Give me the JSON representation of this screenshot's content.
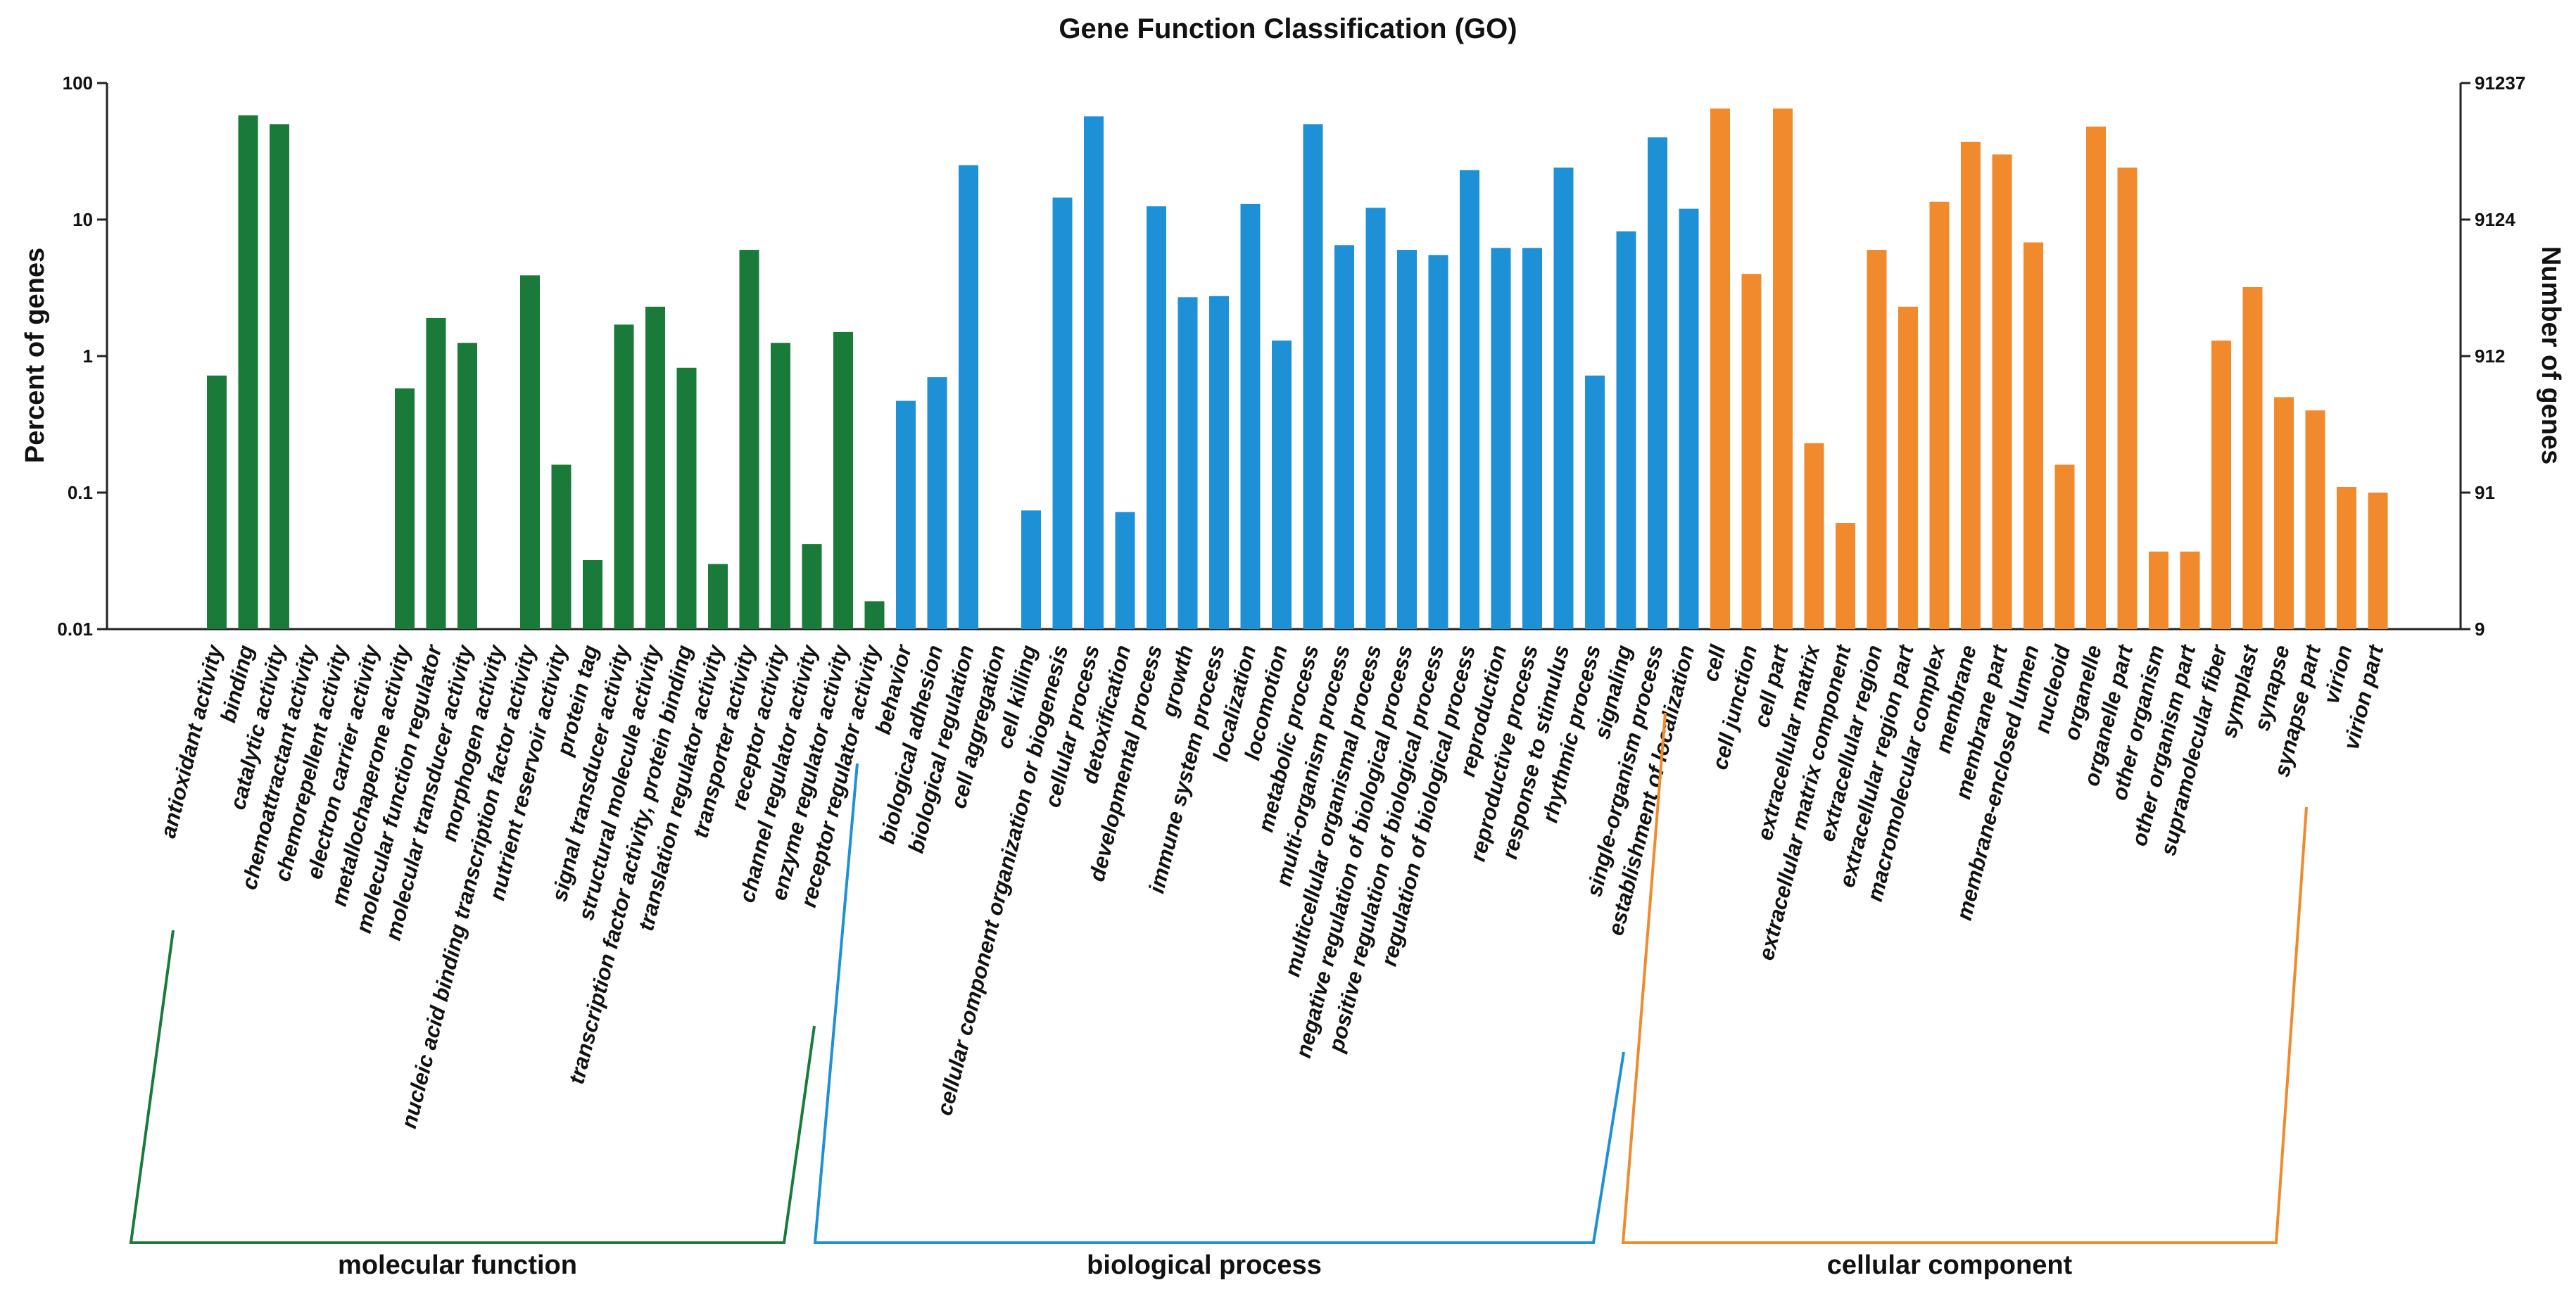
{
  "chart_data": {
    "type": "bar",
    "title": "Gene Function Classification (GO)",
    "ylabel": "Percent of genes",
    "y2label": "Number of genes",
    "yscale": "log",
    "ylim": [
      0.01,
      100
    ],
    "yticks": [
      {
        "value": 0.01,
        "label": "0.01"
      },
      {
        "value": 0.1,
        "label": "0.1"
      },
      {
        "value": 1,
        "label": "1"
      },
      {
        "value": 10,
        "label": "10"
      },
      {
        "value": 100,
        "label": "100"
      }
    ],
    "y2ticks": [
      {
        "value": 0.01,
        "label": "9"
      },
      {
        "value": 0.1,
        "label": "91"
      },
      {
        "value": 1,
        "label": "912"
      },
      {
        "value": 10,
        "label": "9124"
      },
      {
        "value": 100,
        "label": "91237"
      }
    ],
    "groups": [
      {
        "name": "molecular function",
        "color": "#1a7a3a"
      },
      {
        "name": "biological process",
        "color": "#1e90d6"
      },
      {
        "name": "cellular component",
        "color": "#f08a2c"
      }
    ],
    "categories": [
      "antioxidant activity",
      "binding",
      "catalytic activity",
      "chemoattractant activity",
      "chemorepellent activity",
      "electron carrier activity",
      "metallochaperone activity",
      "molecular function regulator",
      "molecular transducer activity",
      "morphogen activity",
      "nucleic acid binding transcription factor activity",
      "nutrient reservoir activity",
      "protein tag",
      "signal transducer activity",
      "structural molecule activity",
      "transcription factor activity, protein binding",
      "translation regulator activity",
      "transporter activity",
      "receptor activity",
      "channel regulator activity",
      "enzyme regulator activity",
      "receptor regulator activity",
      "behavior",
      "biological adhesion",
      "biological regulation",
      "cell aggregation",
      "cell killing",
      "cellular component organization or biogenesis",
      "cellular process",
      "detoxification",
      "developmental process",
      "growth",
      "immune system process",
      "localization",
      "locomotion",
      "metabolic process",
      "multi-organism process",
      "multicellular organismal process",
      "negative regulation of biological process",
      "positive regulation of biological process",
      "regulation of biological process",
      "reproduction",
      "reproductive process",
      "response to stimulus",
      "rhythmic process",
      "signaling",
      "single-organism process",
      "establishment of localization",
      "cell",
      "cell junction",
      "cell part",
      "extracellular matrix",
      "extracellular matrix component",
      "extracellular region",
      "extracellular region part",
      "macromolecular complex",
      "membrane",
      "membrane part",
      "membrane-enclosed lumen",
      "nucleoid",
      "organelle",
      "organelle part",
      "other organism",
      "other organism part",
      "supramolecular fiber",
      "symplast",
      "synapse",
      "synapse part",
      "virion",
      "virion part"
    ],
    "group_index": [
      0,
      0,
      0,
      0,
      0,
      0,
      0,
      0,
      0,
      0,
      0,
      0,
      0,
      0,
      0,
      0,
      0,
      0,
      0,
      0,
      0,
      0,
      1,
      1,
      1,
      1,
      1,
      1,
      1,
      1,
      1,
      1,
      1,
      1,
      1,
      1,
      1,
      1,
      1,
      1,
      1,
      1,
      1,
      1,
      1,
      1,
      1,
      1,
      2,
      2,
      2,
      2,
      2,
      2,
      2,
      2,
      2,
      2,
      2,
      2,
      2,
      2,
      2,
      2,
      2,
      2,
      2,
      2,
      2,
      2
    ],
    "values": [
      0.72,
      58,
      50,
      null,
      null,
      null,
      0.58,
      1.9,
      1.25,
      null,
      3.9,
      0.16,
      0.032,
      1.7,
      2.3,
      0.82,
      0.03,
      6.0,
      1.25,
      0.042,
      1.5,
      0.016,
      0.47,
      0.7,
      25,
      null,
      0.074,
      14.5,
      57,
      0.072,
      12.5,
      2.7,
      2.75,
      13,
      1.3,
      50,
      6.5,
      12.2,
      6.0,
      5.5,
      23,
      6.2,
      6.2,
      24,
      0.72,
      8.2,
      40,
      12,
      65,
      4.0,
      65,
      0.23,
      0.06,
      6.0,
      2.3,
      13.5,
      37,
      30,
      6.8,
      0.16,
      48,
      24,
      0.037,
      0.037,
      1.3,
      3.2,
      0.5,
      0.4,
      0.11,
      0.1
    ],
    "xlabel": ""
  }
}
